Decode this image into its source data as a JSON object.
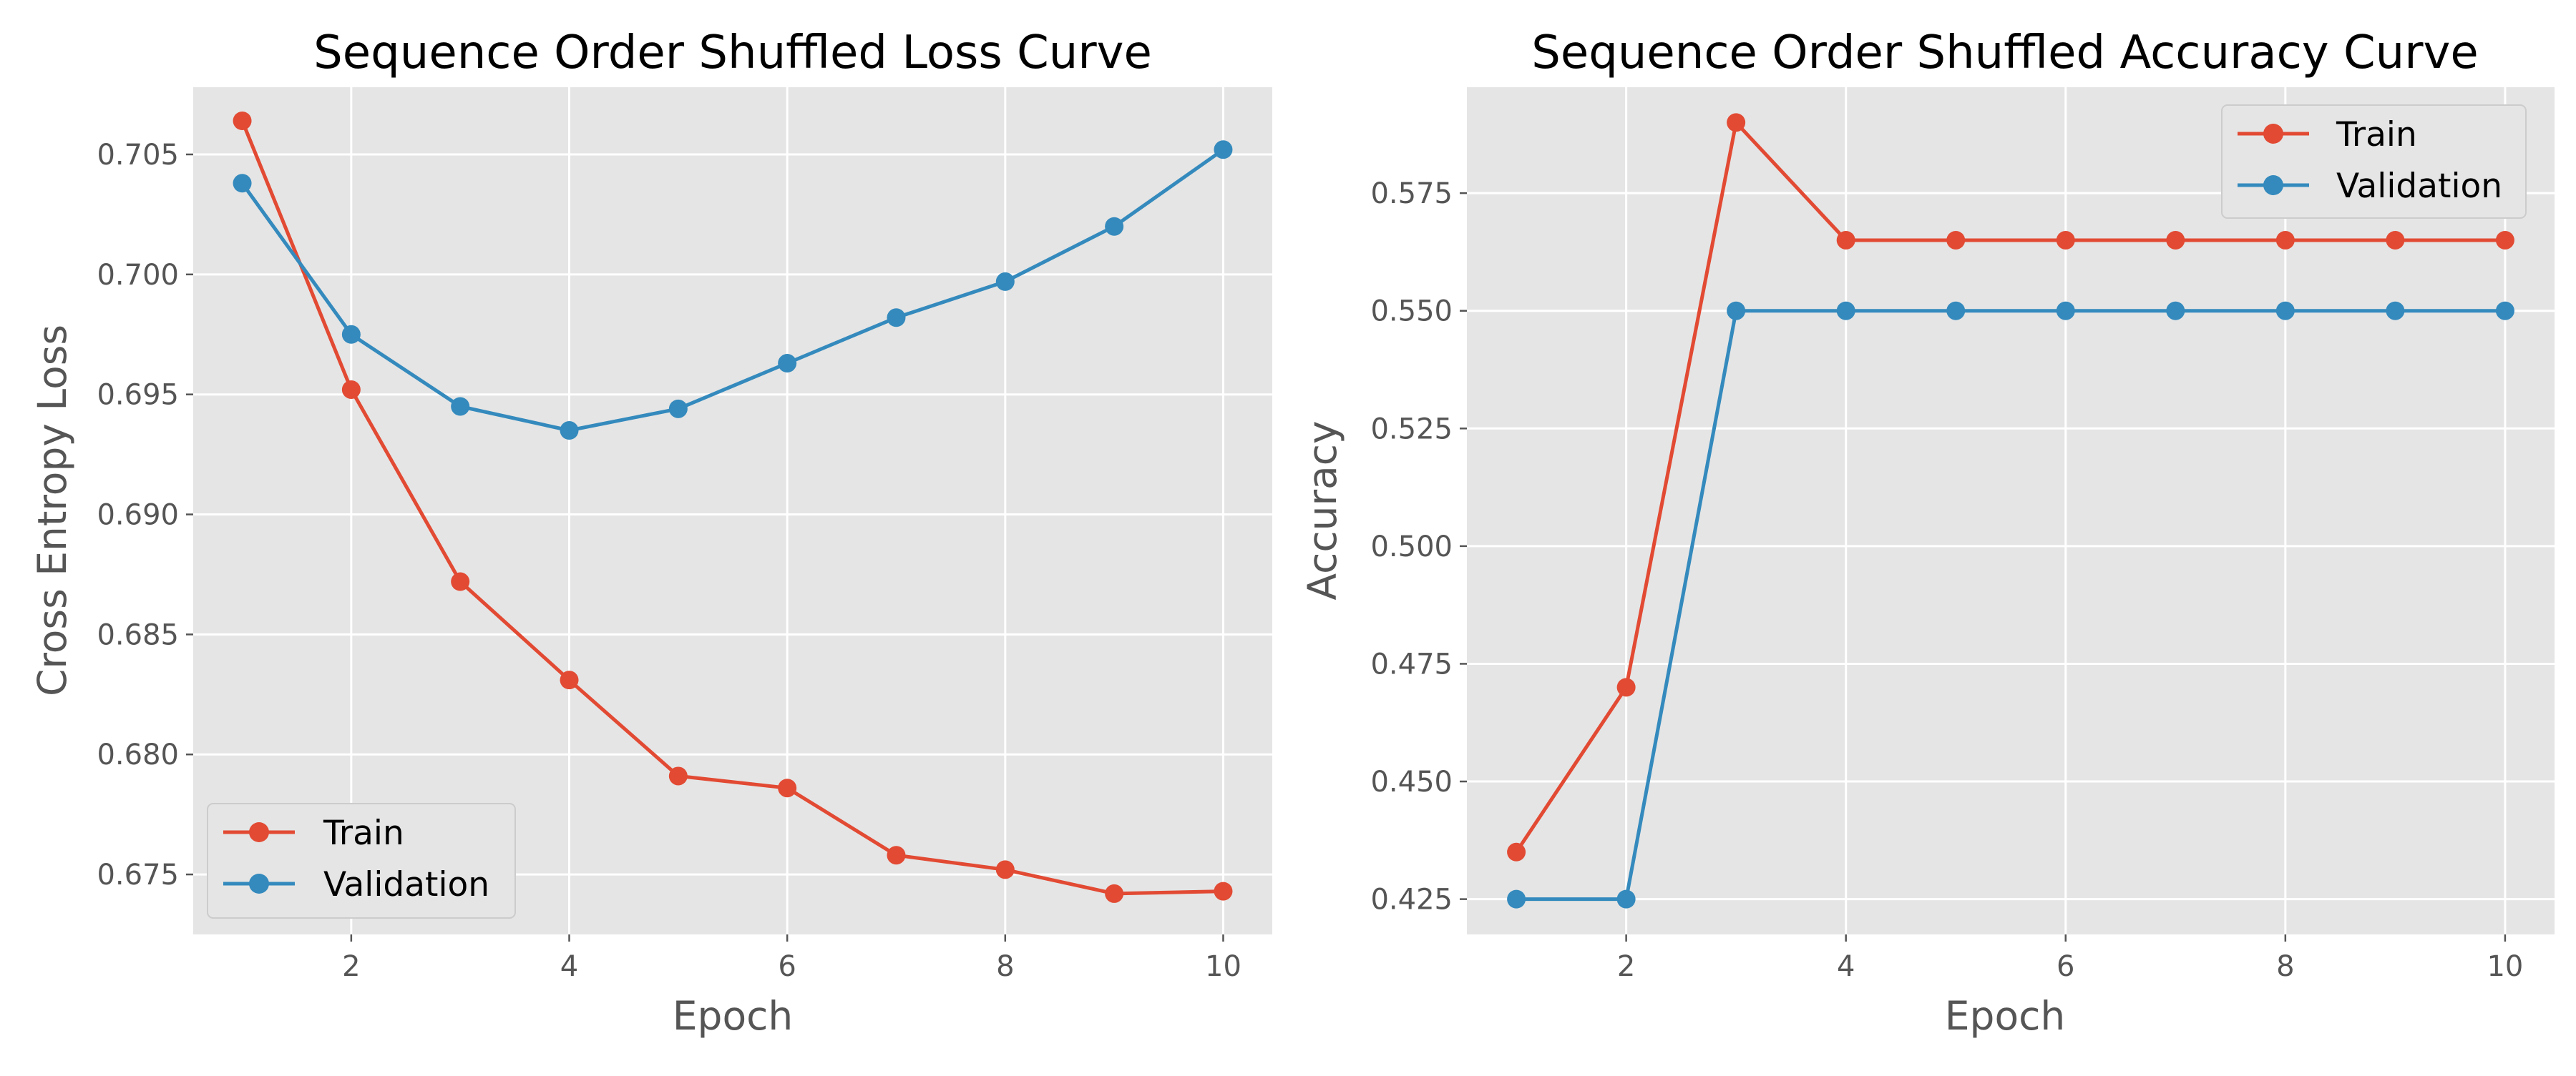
{
  "colors": {
    "train": "#E24A33",
    "validation": "#348ABD",
    "background": "#E5E5E5",
    "grid": "#FFFFFF"
  },
  "chart_data": [
    {
      "type": "line",
      "title": "Sequence Order Shuffled Loss Curve",
      "xlabel": "Epoch",
      "ylabel": "Cross Entropy Loss",
      "xlim": [
        0.55,
        10.45
      ],
      "ylim": [
        0.6725,
        0.7078
      ],
      "xticks": [
        2,
        4,
        6,
        8,
        10
      ],
      "yticks": [
        0.675,
        0.68,
        0.685,
        0.69,
        0.695,
        0.7,
        0.705
      ],
      "ytick_labels": [
        "0.675",
        "0.680",
        "0.685",
        "0.690",
        "0.695",
        "0.700",
        "0.705"
      ],
      "grid": true,
      "legend_position": "lower-left",
      "x": [
        1,
        2,
        3,
        4,
        5,
        6,
        7,
        8,
        9,
        10
      ],
      "series": [
        {
          "name": "Train",
          "color": "#E24A33",
          "values": [
            0.7064,
            0.6952,
            0.6872,
            0.6831,
            0.6791,
            0.6786,
            0.6758,
            0.6752,
            0.6742,
            0.6743
          ]
        },
        {
          "name": "Validation",
          "color": "#348ABD",
          "values": [
            0.7038,
            0.6975,
            0.6945,
            0.6935,
            0.6944,
            0.6963,
            0.6982,
            0.6997,
            0.702,
            0.7052
          ]
        }
      ]
    },
    {
      "type": "line",
      "title": "Sequence Order Shuffled Accuracy Curve",
      "xlabel": "Epoch",
      "ylabel": "Accuracy",
      "xlim": [
        0.55,
        10.45
      ],
      "ylim": [
        0.4175,
        0.5975
      ],
      "xticks": [
        2,
        4,
        6,
        8,
        10
      ],
      "yticks": [
        0.425,
        0.45,
        0.475,
        0.5,
        0.525,
        0.55,
        0.575
      ],
      "ytick_labels": [
        "0.425",
        "0.450",
        "0.475",
        "0.500",
        "0.525",
        "0.550",
        "0.575"
      ],
      "grid": true,
      "legend_position": "upper-right",
      "x": [
        1,
        2,
        3,
        4,
        5,
        6,
        7,
        8,
        9,
        10
      ],
      "series": [
        {
          "name": "Train",
          "color": "#E24A33",
          "values": [
            0.435,
            0.47,
            0.59,
            0.565,
            0.565,
            0.565,
            0.565,
            0.565,
            0.565,
            0.565
          ]
        },
        {
          "name": "Validation",
          "color": "#348ABD",
          "values": [
            0.425,
            0.425,
            0.55,
            0.55,
            0.55,
            0.55,
            0.55,
            0.55,
            0.55,
            0.55
          ]
        }
      ]
    }
  ]
}
